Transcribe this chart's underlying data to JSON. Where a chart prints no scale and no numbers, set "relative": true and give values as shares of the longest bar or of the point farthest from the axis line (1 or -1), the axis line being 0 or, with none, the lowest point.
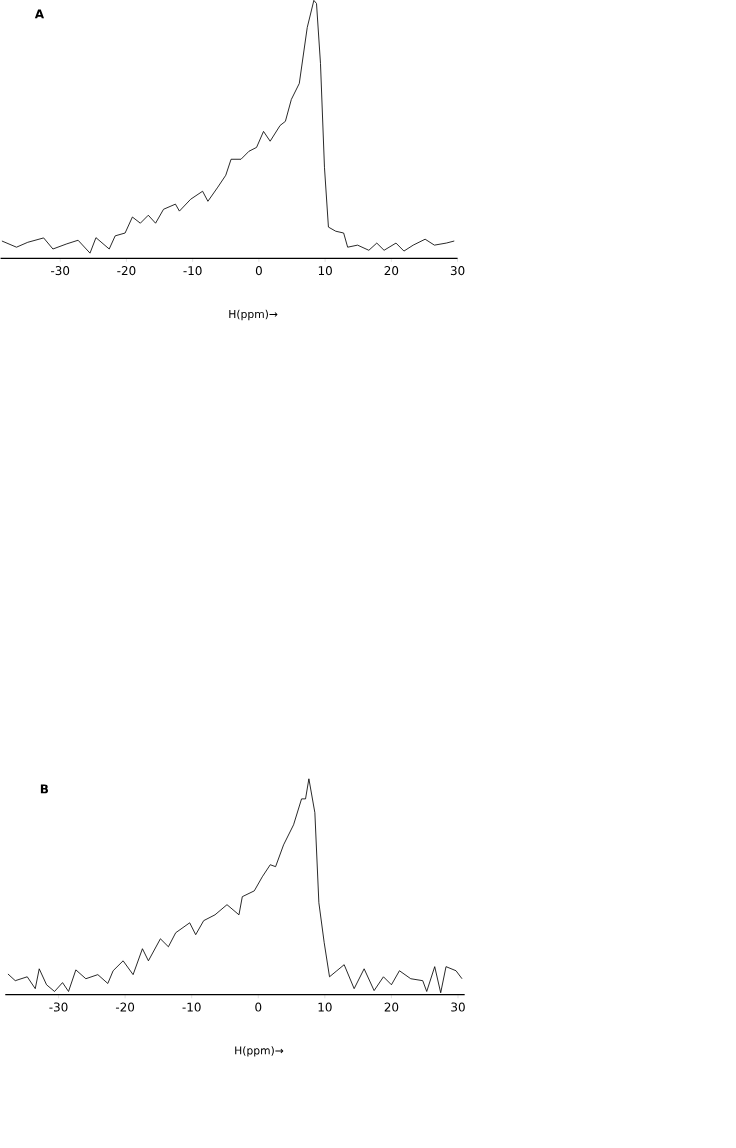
{
  "chart_data": [
    {
      "type": "line",
      "title": "A",
      "xlabel": "H(ppm)→",
      "relative": true,
      "color": "#000000",
      "xlim": [
        -39,
        30
      ],
      "xticks": [
        -30,
        -20,
        -10,
        0,
        10,
        20,
        30
      ],
      "x": [
        -38.8,
        -36.6,
        -34.9,
        -32.5,
        -31.1,
        -29,
        -27.3,
        -25.5,
        -24.6,
        -22.6,
        -21.7,
        -20.2,
        -19.1,
        -17.9,
        -16.7,
        -15.6,
        -14.4,
        -12.6,
        -12,
        -10.3,
        -8.5,
        -7.7,
        -6.2,
        -5,
        -4.2,
        -2.7,
        -1.5,
        -0.35,
        0.7,
        1.7,
        3.2,
        4,
        4.9,
        6.1,
        7.3,
        8.3,
        8.7,
        9.3,
        9.9,
        10.5,
        11.6,
        12.8,
        13.4,
        14.9,
        16.6,
        17.8,
        18.9,
        20.7,
        21.9,
        23.3,
        25.1,
        26.5,
        28.3,
        29.5
      ],
      "values": [
        0.067,
        0.043,
        0.062,
        0.079,
        0.036,
        0.056,
        0.07,
        0.02,
        0.08,
        0.036,
        0.087,
        0.098,
        0.16,
        0.136,
        0.167,
        0.136,
        0.19,
        0.21,
        0.183,
        0.229,
        0.26,
        0.221,
        0.276,
        0.322,
        0.384,
        0.384,
        0.415,
        0.43,
        0.492,
        0.454,
        0.515,
        0.531,
        0.616,
        0.678,
        0.895,
        1.0,
        0.988,
        0.755,
        0.353,
        0.121,
        0.105,
        0.098,
        0.043,
        0.051,
        0.031,
        0.059,
        0.031,
        0.059,
        0.028,
        0.051,
        0.074,
        0.051,
        0.059,
        0.067
      ]
    },
    {
      "type": "line",
      "title": "B",
      "xlabel": "H(ppm)→",
      "relative": true,
      "color": "#000000",
      "xlim": [
        -38,
        31
      ],
      "xticks": [
        -30,
        -20,
        -10,
        0,
        10,
        20,
        30
      ],
      "x": [
        -37.6,
        -36.5,
        -34.7,
        -33.5,
        -32.9,
        -31.8,
        -30.6,
        -29.4,
        -28.5,
        -27.4,
        -25.9,
        -24.1,
        -22.6,
        -21.8,
        -20.3,
        -18.8,
        -17.4,
        -16.5,
        -14.7,
        -13.5,
        -12.4,
        -10.3,
        -9.4,
        -8.2,
        -6.5,
        -4.7,
        -2.9,
        -2.4,
        -0.6,
        0.6,
        1.8,
        2.6,
        3.8,
        5.3,
        6.5,
        7.1,
        7.6,
        8.5,
        9.1,
        9.9,
        10.7,
        11.8,
        12.9,
        14.4,
        15.9,
        17.4,
        18.8,
        20,
        21.2,
        22.9,
        24.7,
        25.3,
        26.5,
        27.4,
        28.2,
        29.7,
        30.6
      ],
      "values": [
        0.096,
        0.065,
        0.083,
        0.028,
        0.12,
        0.046,
        0.015,
        0.056,
        0.015,
        0.115,
        0.074,
        0.093,
        0.052,
        0.111,
        0.157,
        0.093,
        0.213,
        0.157,
        0.259,
        0.222,
        0.287,
        0.333,
        0.278,
        0.343,
        0.37,
        0.417,
        0.37,
        0.454,
        0.481,
        0.546,
        0.602,
        0.593,
        0.694,
        0.787,
        0.907,
        0.907,
        1.0,
        0.843,
        0.426,
        0.241,
        0.083,
        0.111,
        0.139,
        0.028,
        0.12,
        0.019,
        0.083,
        0.046,
        0.111,
        0.074,
        0.065,
        0.015,
        0.13,
        0.009,
        0.13,
        0.111,
        0.074
      ]
    }
  ]
}
